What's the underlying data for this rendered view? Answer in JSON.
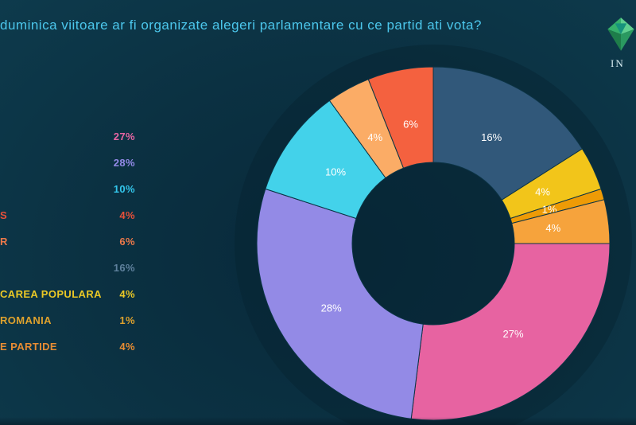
{
  "title": "duminica viitoare ar fi organizate alegeri parlamentare cu ce partid ati vota?",
  "logo": {
    "text": "IN"
  },
  "legend": {
    "items": [
      {
        "label": "",
        "value": "27%",
        "color": "#e765a3"
      },
      {
        "label": "",
        "value": "28%",
        "color": "#9289e6"
      },
      {
        "label": "",
        "value": "10%",
        "color": "#33c5ea"
      },
      {
        "label": "S",
        "value": "4%",
        "color": "#e7503a"
      },
      {
        "label": "R",
        "value": "6%",
        "color": "#ec794a"
      },
      {
        "label": "",
        "value": "16%",
        "color": "#5e809c"
      },
      {
        "label": "CAREA POPULARA",
        "value": "4%",
        "color": "#eac826"
      },
      {
        "label": "ROMANIA",
        "value": "1%",
        "color": "#dfa22d"
      },
      {
        "label": "E PARTIDE",
        "value": "4%",
        "color": "#e78c33"
      }
    ]
  },
  "chart_data": {
    "type": "pie",
    "subtype": "donut",
    "title": "duminica viitoare ar fi organizate alegeri parlamentare cu ce partid ati vota?",
    "units": "percent",
    "start_angle_deg": 0,
    "direction": "clockwise",
    "legend_position": "left",
    "segments": [
      {
        "label": "16%",
        "value": 16,
        "color": "#31587a"
      },
      {
        "label": "4%",
        "value": 4,
        "color": "#f2c51a"
      },
      {
        "label": "1%",
        "value": 1,
        "color": "#ee9b06"
      },
      {
        "label": "4%",
        "value": 4,
        "color": "#f6a33c"
      },
      {
        "label": "27%",
        "value": 27,
        "color": "#e763a1"
      },
      {
        "label": "28%",
        "value": 28,
        "color": "#938ae6"
      },
      {
        "label": "10%",
        "value": 10,
        "color": "#43d2ea"
      },
      {
        "label": "4%",
        "value": 4,
        "color": "#fbac66"
      },
      {
        "label": "6%",
        "value": 6,
        "color": "#f4613f"
      }
    ]
  },
  "colors": {
    "background_center": "#08293a",
    "background_edge": "#0e3c4e",
    "title_text": "#4cc7ec",
    "segment_label_text": "#ffffff"
  }
}
